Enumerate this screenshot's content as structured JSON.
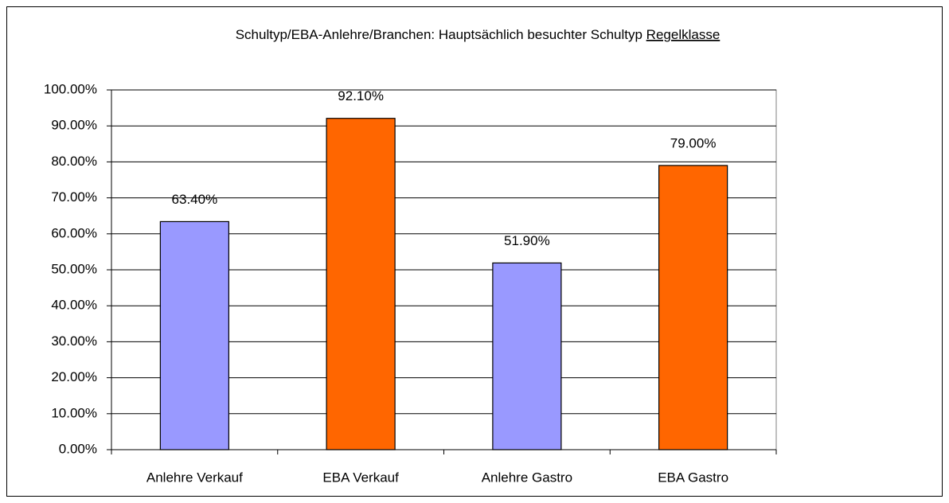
{
  "chart_data": {
    "type": "bar",
    "title": "Schultyp/EBA-Anlehre/Branchen: Hauptsächlich besuchter Schultyp",
    "title_emphasis": "Regelklasse",
    "categories": [
      "Anlehre Verkauf",
      "EBA Verkauf",
      "Anlehre Gastro",
      "EBA Gastro"
    ],
    "values": [
      63.4,
      92.1,
      51.9,
      79.0
    ],
    "value_labels": [
      "63.40%",
      "92.10%",
      "51.90%",
      "79.00%"
    ],
    "colors": [
      "#9999ff",
      "#ff6600",
      "#9999ff",
      "#ff6600"
    ],
    "ylim": [
      0,
      100
    ],
    "yticks": [
      {
        "value": 0,
        "label": "0.00%"
      },
      {
        "value": 10,
        "label": "10.00%"
      },
      {
        "value": 20,
        "label": "20.00%"
      },
      {
        "value": 30,
        "label": "30.00%"
      },
      {
        "value": 40,
        "label": "40.00%"
      },
      {
        "value": 50,
        "label": "50.00%"
      },
      {
        "value": 60,
        "label": "60.00%"
      },
      {
        "value": 70,
        "label": "70.00%"
      },
      {
        "value": 80,
        "label": "80.00%"
      },
      {
        "value": 90,
        "label": "90.00%"
      },
      {
        "value": 100,
        "label": "100.00%"
      }
    ],
    "grid": true
  }
}
